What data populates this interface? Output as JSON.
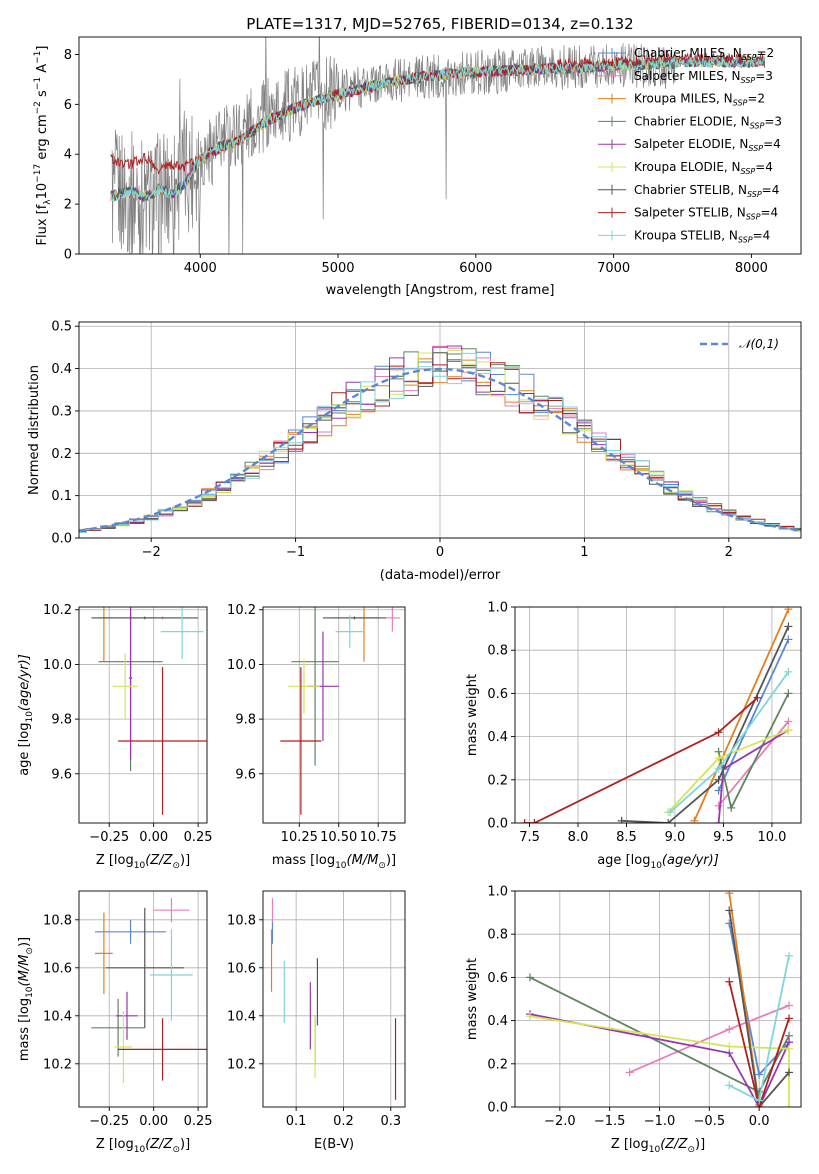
{
  "figure": {
    "title": "PLATE=1317, MJD=52765, FIBERID=0134, z=0.132"
  },
  "models": [
    {
      "name": "Chabrier MILES, N",
      "sub": "SSP",
      "n": "=2",
      "color": "#5a88d6"
    },
    {
      "name": "Salpeter MILES, N",
      "sub": "SSP",
      "n": "=3",
      "color": "#e87fb8"
    },
    {
      "name": "Kroupa MILES, N",
      "sub": "SSP",
      "n": "=2",
      "color": "#e6801e"
    },
    {
      "name": "Chabrier ELODIE, N",
      "sub": "SSP",
      "n": "=3",
      "color": "#5e8560"
    },
    {
      "name": "Salpeter ELODIE, N",
      "sub": "SSP",
      "n": "=4",
      "color": "#9a36b0"
    },
    {
      "name": "Kroupa ELODIE, N",
      "sub": "SSP",
      "n": "=4",
      "color": "#d4e658"
    },
    {
      "name": "Chabrier STELIB, N",
      "sub": "SSP",
      "n": "=4",
      "color": "#555555"
    },
    {
      "name": "Salpeter STELIB, N",
      "sub": "SSP",
      "n": "=4",
      "color": "#b01f1f"
    },
    {
      "name": "Kroupa STELIB, N",
      "sub": "SSP",
      "n": "=4",
      "color": "#7fd6dc"
    }
  ],
  "chart_data": [
    {
      "id": "spectrum",
      "type": "line",
      "xlabel": "wavelength [Angstrom, rest frame]",
      "ylabel_main": "Flux [f",
      "ylabel_lambda": "λ",
      "ylabel_mid": "10",
      "ylabel_exp1": "−17",
      "ylabel_unit": " erg cm",
      "ylabel_exp2": "−2",
      "ylabel_s": " s",
      "ylabel_exp3": "−1",
      "ylabel_A": " A",
      "ylabel_exp4": "−1",
      "ylabel_end": "]",
      "xlim": [
        3120,
        8360
      ],
      "ylim": [
        0,
        8.7
      ],
      "xticks": [
        4000,
        5000,
        6000,
        7000,
        8000
      ],
      "yticks": [
        0,
        2,
        4,
        6,
        8
      ],
      "data_color": "#808080",
      "data_anchors": {
        "x": [
          3360,
          3500,
          3620,
          3780,
          3950,
          4100,
          4300,
          4600,
          4900,
          5200,
          5500,
          5800,
          6100,
          6400,
          6700,
          7000,
          7300,
          7450
        ],
        "y": [
          2.5,
          2.4,
          2.0,
          2.6,
          3.6,
          4.3,
          5.0,
          5.9,
          6.4,
          6.8,
          7.0,
          7.2,
          7.3,
          7.4,
          7.5,
          7.6,
          7.5,
          7.4
        ]
      },
      "model_anchors": {
        "x": [
          3350,
          3500,
          3600,
          3700,
          3800,
          3900,
          4000,
          4150,
          4300,
          4500,
          4700,
          5000,
          5300,
          5600,
          6000,
          6400,
          6800,
          7200,
          7600,
          8100
        ],
        "y": [
          2.3,
          2.5,
          2.3,
          2.6,
          2.4,
          2.9,
          3.8,
          4.3,
          4.6,
          5.4,
          5.9,
          6.4,
          6.8,
          7.1,
          7.3,
          7.4,
          7.5,
          7.6,
          7.7,
          7.7
        ]
      },
      "model_anchors_salpeter_stelib": {
        "x": [
          3350,
          3500,
          3600,
          3700,
          3800,
          3900,
          4000
        ],
        "y": [
          3.8,
          3.6,
          3.9,
          3.4,
          3.6,
          3.5,
          3.9
        ]
      }
    },
    {
      "id": "residuals",
      "type": "histogram",
      "xlabel": "(data-model)/error",
      "ylabel": "Normed distribution",
      "xlim": [
        -2.5,
        2.5
      ],
      "ylim": [
        0,
        0.51
      ],
      "xticks": [
        -2,
        -1,
        0,
        1,
        2
      ],
      "yticks": [
        0.0,
        0.1,
        0.2,
        0.3,
        0.4,
        0.5
      ],
      "bin_width": 0.1,
      "legend": "𝒩(0,1)",
      "norm_color": "#5a88d6"
    },
    {
      "id": "age_vs_Z",
      "type": "errorbar",
      "xlabel": "Z [log",
      "xlabel_sub": "10",
      "xlabel_rest": "(Z/Z",
      "xlabel_sun": "⊙",
      "xlabel_end": ")]",
      "ylabel": "age  [log",
      "ylabel_sub": "10",
      "ylabel_rest": "(age/yr)]",
      "xlim": [
        -0.42,
        0.3
      ],
      "ylim": [
        9.42,
        10.21
      ],
      "xticks": [
        -0.25,
        0.0,
        0.25
      ],
      "yticks": [
        9.6,
        9.8,
        10.0,
        10.2
      ],
      "points": [
        {
          "m": 0,
          "x": -0.13,
          "xerr": 0.15,
          "y": 10.17,
          "yerr": 0.005
        },
        {
          "m": 1,
          "x": 0.05,
          "xerr": 0.12,
          "y": 10.17,
          "yerr": 0.005
        },
        {
          "m": 2,
          "x": -0.28,
          "xerr": 0.05,
          "y": 10.17,
          "yerr": 0.16
        },
        {
          "m": 3,
          "x": -0.13,
          "xerr": 0.18,
          "y": 10.01,
          "yerr": 0.4
        },
        {
          "m": 4,
          "x": -0.13,
          "xerr": 0.01,
          "y": 9.95,
          "yerr": 0.3
        },
        {
          "m": 5,
          "x": -0.16,
          "xerr": 0.07,
          "y": 9.92,
          "yerr": 0.12
        },
        {
          "m": 6,
          "x": -0.05,
          "xerr": 0.3,
          "y": 10.17,
          "yerr": 0.005
        },
        {
          "m": 7,
          "x": 0.05,
          "xerr": 0.25,
          "y": 9.72,
          "yerr": 0.27
        },
        {
          "m": 8,
          "x": 0.16,
          "xerr": 0.12,
          "y": 10.12,
          "yerr": 0.1
        }
      ]
    },
    {
      "id": "age_vs_mass",
      "type": "errorbar",
      "xlabel": "mass [log",
      "xlabel_sub": "10",
      "xlabel_rest": "(M/M",
      "xlabel_sun": "⊙",
      "xlabel_end": ")]",
      "xlim": [
        10.02,
        10.92
      ],
      "ylim": [
        9.42,
        10.21
      ],
      "xticks": [
        10.25,
        10.5,
        10.75
      ],
      "yticks": [
        9.6,
        9.8,
        10.0,
        10.2
      ],
      "points": [
        {
          "m": 0,
          "x": 10.6,
          "xerr": 0.15,
          "y": 10.17,
          "yerr": 0.005
        },
        {
          "m": 1,
          "x": 10.84,
          "xerr": 0.05,
          "y": 10.17,
          "yerr": 0.05
        },
        {
          "m": 2,
          "x": 10.66,
          "xerr": 0.1,
          "y": 10.17,
          "yerr": 0.16
        },
        {
          "m": 3,
          "x": 10.35,
          "xerr": 0.15,
          "y": 10.01,
          "yerr": 0.38
        },
        {
          "m": 4,
          "x": 10.4,
          "xerr": 0.1,
          "y": 9.92,
          "yerr": 0.2
        },
        {
          "m": 5,
          "x": 10.28,
          "xerr": 0.1,
          "y": 9.92,
          "yerr": 0.1
        },
        {
          "m": 6,
          "x": 10.6,
          "xerr": 0.2,
          "y": 10.17,
          "yerr": 0.005
        },
        {
          "m": 7,
          "x": 10.26,
          "xerr": 0.13,
          "y": 9.72,
          "yerr": 0.27
        },
        {
          "m": 8,
          "x": 10.57,
          "xerr": 0.09,
          "y": 10.12,
          "yerr": 0.06
        }
      ]
    },
    {
      "id": "weight_vs_age",
      "type": "line",
      "xlabel": "age  [log",
      "xlabel_sub": "10",
      "xlabel_rest": "(age/yr)]",
      "ylabel": "mass weight",
      "xlim": [
        7.35,
        10.3
      ],
      "ylim": [
        0,
        1.0
      ],
      "xticks": [
        7.5,
        8.0,
        8.5,
        9.0,
        9.5,
        10.0
      ],
      "yticks": [
        0.0,
        0.2,
        0.4,
        0.6,
        0.8,
        1.0
      ],
      "series": [
        {
          "m": 0,
          "x": [
            9.45,
            10.17
          ],
          "y": [
            0.15,
            0.85
          ]
        },
        {
          "m": 1,
          "x": [
            9.45,
            10.17
          ],
          "y": [
            0.08,
            0.47
          ]
        },
        {
          "m": 2,
          "x": [
            9.2,
            10.17
          ],
          "y": [
            0.01,
            0.99
          ]
        },
        {
          "m": 3,
          "x": [
            9.45,
            9.58,
            10.17
          ],
          "y": [
            0.33,
            0.07,
            0.6
          ]
        },
        {
          "m": 4,
          "x": [
            9.45,
            9.5,
            10.17
          ],
          "y": [
            0.0,
            0.25,
            0.43
          ]
        },
        {
          "m": 5,
          "x": [
            8.93,
            9.45,
            10.17
          ],
          "y": [
            0.05,
            0.3,
            0.43
          ]
        },
        {
          "m": 6,
          "x": [
            8.45,
            8.93,
            9.45,
            10.17
          ],
          "y": [
            0.01,
            0.0,
            0.2,
            0.91
          ]
        },
        {
          "m": 7,
          "x": [
            7.45,
            7.55,
            9.45,
            9.85
          ],
          "y": [
            0.0,
            0.0,
            0.42,
            0.58
          ]
        },
        {
          "m": 8,
          "x": [
            8.95,
            9.45,
            10.17
          ],
          "y": [
            0.05,
            0.25,
            0.7
          ]
        }
      ]
    },
    {
      "id": "mass_vs_Z",
      "type": "errorbar",
      "xlabel": "Z [log",
      "xlabel_sub": "10",
      "xlabel_rest": "(Z/Z",
      "xlabel_sun": "⊙",
      "xlabel_end": ")]",
      "ylabel": "mass [log",
      "ylabel_sub": "10",
      "ylabel_rest": "(M/M",
      "ylabel_sun": "⊙",
      "ylabel_end": ")]",
      "xlim": [
        -0.42,
        0.3
      ],
      "ylim": [
        10.02,
        10.92
      ],
      "xticks": [
        -0.25,
        0.0,
        0.25
      ],
      "yticks": [
        10.2,
        10.4,
        10.6,
        10.8
      ],
      "points": [
        {
          "m": 0,
          "x": -0.13,
          "xerr": 0.2,
          "y": 10.75,
          "yerr": 0.05
        },
        {
          "m": 1,
          "x": 0.1,
          "xerr": 0.1,
          "y": 10.84,
          "yerr": 0.05
        },
        {
          "m": 2,
          "x": -0.28,
          "xerr": 0.05,
          "y": 10.66,
          "yerr": 0.17
        },
        {
          "m": 3,
          "x": -0.2,
          "xerr": 0.15,
          "y": 10.35,
          "yerr": 0.12
        },
        {
          "m": 4,
          "x": -0.15,
          "xerr": 0.06,
          "y": 10.4,
          "yerr": 0.1
        },
        {
          "m": 5,
          "x": -0.17,
          "xerr": 0.05,
          "y": 10.27,
          "yerr": 0.15
        },
        {
          "m": 6,
          "x": -0.05,
          "xerr": 0.22,
          "y": 10.6,
          "yerr": 0.25
        },
        {
          "m": 7,
          "x": 0.05,
          "xerr": 0.25,
          "y": 10.26,
          "yerr": 0.13
        },
        {
          "m": 8,
          "x": 0.1,
          "xerr": 0.12,
          "y": 10.57,
          "yerr": 0.19
        }
      ]
    },
    {
      "id": "mass_vs_EBV",
      "type": "errorbar",
      "xlabel": "E(B-V)",
      "xlim": [
        0.03,
        0.33
      ],
      "ylim": [
        10.02,
        10.92
      ],
      "xticks": [
        0.1,
        0.2,
        0.3
      ],
      "yticks": [
        10.2,
        10.4,
        10.6,
        10.8
      ],
      "points": [
        {
          "m": 0,
          "x": 0.05,
          "xerr": 0.0,
          "y": 10.75,
          "yerr": 0.05
        },
        {
          "m": 1,
          "x": 0.05,
          "xerr": 0.0,
          "y": 10.84,
          "yerr": 0.05
        },
        {
          "m": 2,
          "x": 0.048,
          "xerr": 0.0,
          "y": 10.63,
          "yerr": 0.13
        },
        {
          "m": 3,
          "x": 0.14,
          "xerr": 0.0,
          "y": 10.3,
          "yerr": 0.1
        },
        {
          "m": 4,
          "x": 0.13,
          "xerr": 0.0,
          "y": 10.4,
          "yerr": 0.14
        },
        {
          "m": 5,
          "x": 0.14,
          "xerr": 0.0,
          "y": 10.27,
          "yerr": 0.13
        },
        {
          "m": 6,
          "x": 0.145,
          "xerr": 0.0,
          "y": 10.5,
          "yerr": 0.14
        },
        {
          "m": 7,
          "x": 0.31,
          "xerr": 0.0,
          "y": 10.22,
          "yerr": 0.17
        },
        {
          "m": 8,
          "x": 0.075,
          "xerr": 0.0,
          "y": 10.5,
          "yerr": 0.13
        }
      ]
    },
    {
      "id": "weight_vs_Z",
      "type": "line",
      "xlabel": "Z [log",
      "xlabel_sub": "10",
      "xlabel_rest": "(Z/Z",
      "xlabel_sun": "⊙",
      "xlabel_end": ")]",
      "ylabel": "mass weight",
      "xlim": [
        -2.45,
        0.42
      ],
      "ylim": [
        0,
        1.0
      ],
      "xticks": [
        -2.0,
        -1.5,
        -1.0,
        -0.5,
        0.0
      ],
      "yticks": [
        0.0,
        0.2,
        0.4,
        0.6,
        0.8,
        1.0
      ],
      "series": [
        {
          "m": 0,
          "x": [
            -0.3,
            0.0,
            0.3
          ],
          "y": [
            0.85,
            0.15,
            0.3
          ]
        },
        {
          "m": 1,
          "x": [
            -1.3,
            -0.3,
            0.3
          ],
          "y": [
            0.16,
            0.36,
            0.47
          ]
        },
        {
          "m": 2,
          "x": [
            -0.3,
            0.0
          ],
          "y": [
            0.99,
            0.01
          ]
        },
        {
          "m": 3,
          "x": [
            -2.3,
            0.0,
            0.3
          ],
          "y": [
            0.6,
            0.07,
            0.33
          ]
        },
        {
          "m": 4,
          "x": [
            -2.3,
            -0.3,
            0.0,
            0.3
          ],
          "y": [
            0.43,
            0.25,
            0.0,
            0.3
          ]
        },
        {
          "m": 5,
          "x": [
            -2.3,
            -0.3,
            0.3,
            0.3
          ],
          "y": [
            0.42,
            0.28,
            0.27,
            0.0
          ]
        },
        {
          "m": 6,
          "x": [
            -0.3,
            0.0,
            0.3
          ],
          "y": [
            0.91,
            0.0,
            0.16
          ]
        },
        {
          "m": 7,
          "x": [
            -0.3,
            0.0,
            0.3
          ],
          "y": [
            0.58,
            0.0,
            0.41
          ]
        },
        {
          "m": 8,
          "x": [
            -0.3,
            0.0,
            0.3
          ],
          "y": [
            0.1,
            0.03,
            0.7
          ]
        }
      ]
    }
  ]
}
